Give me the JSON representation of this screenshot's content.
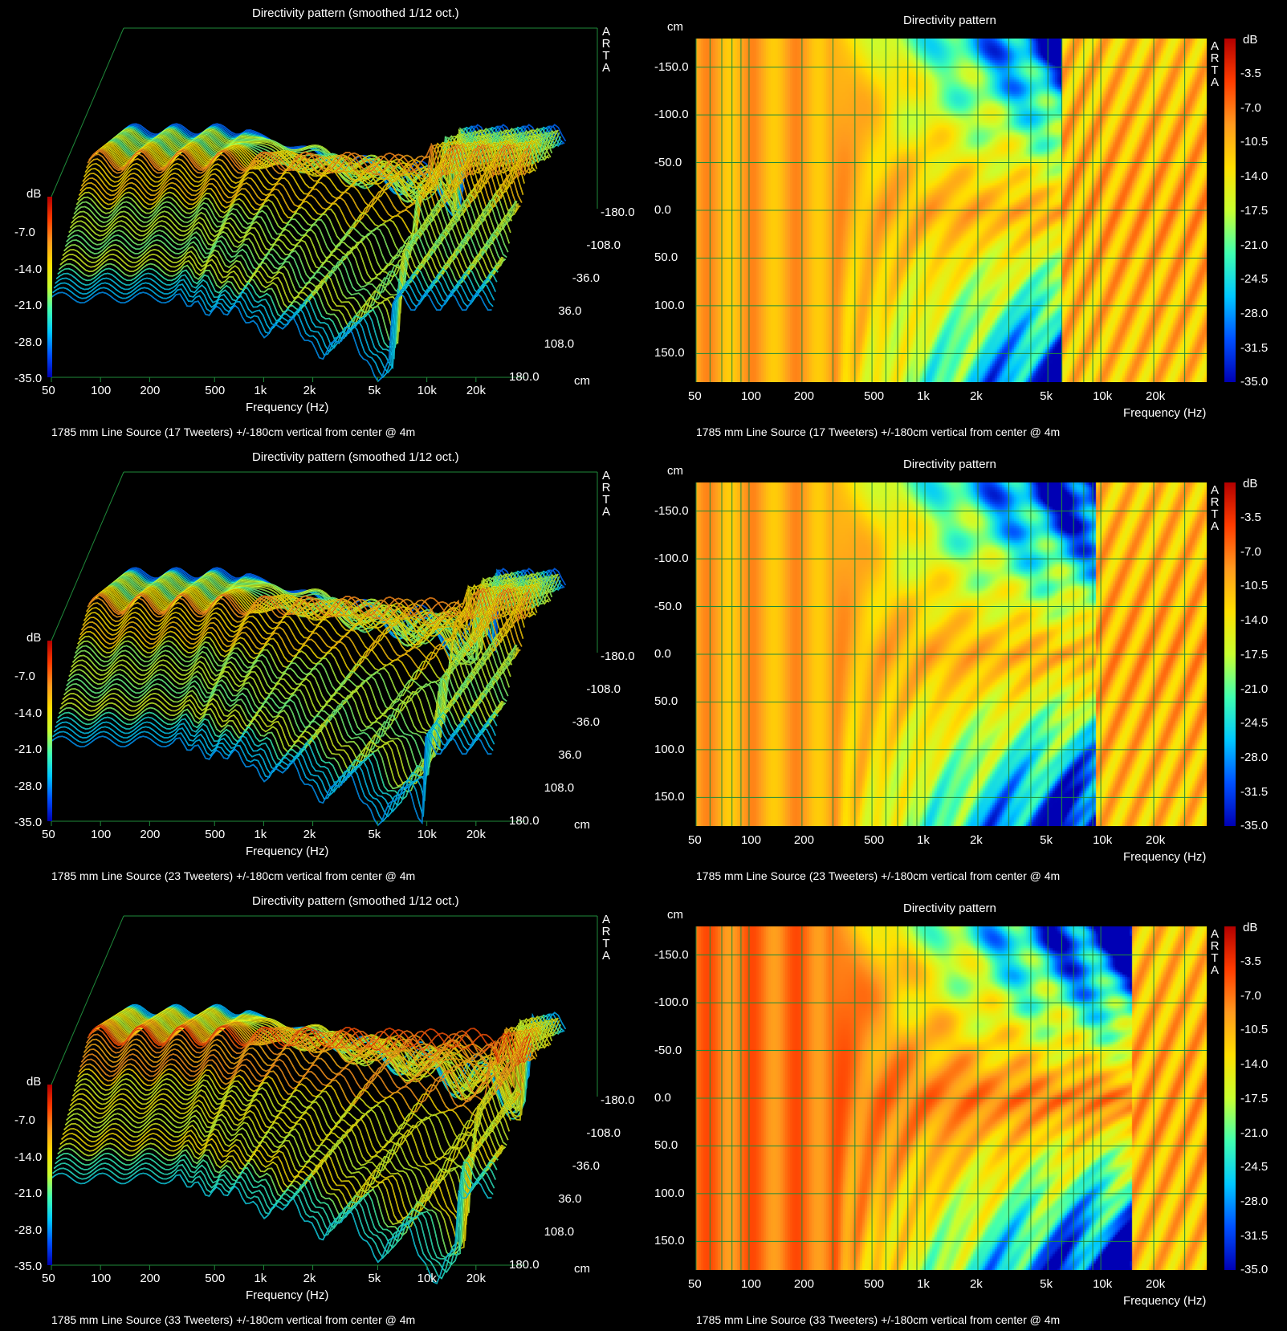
{
  "panels_meta": {
    "left_title": "Directivity pattern (smoothed 1/12 oct.)",
    "right_title": "Directivity pattern",
    "x_label": "Frequency (Hz)",
    "db_label": "dB",
    "cm_label": "cm",
    "watermark": [
      "A",
      "R",
      "T",
      "A"
    ]
  },
  "colors": {
    "grid": "#1f8a3a",
    "surface_stroke": "#000000",
    "colormap": [
      "#0000b4",
      "#0050ff",
      "#00c8ff",
      "#40ffb0",
      "#c8ff30",
      "#ffe000",
      "#ff9a1e",
      "#ff3c00",
      "#b40000"
    ]
  },
  "rows": [
    {
      "caption": "1785 mm Line Source (17 Tweeters) +/-180cm vertical from center @ 4m",
      "tweeters": 17
    },
    {
      "caption": "1785 mm Line Source (23 Tweeters) +/-180cm vertical from center @ 4m",
      "tweeters": 23
    },
    {
      "caption": "1785 mm Line Source (33 Tweeters) +/-180cm vertical from center @ 4m",
      "tweeters": 33
    }
  ],
  "chart_data": [
    {
      "type": "area",
      "title": "Directivity pattern (smoothed 1/12 oct.)",
      "subtitle": "1785 mm Line Source (17 Tweeters) +/-180cm vertical from center @ 4m",
      "xlabel": "Frequency (Hz)",
      "ylabel": "dB",
      "zlabel": "cm",
      "x_scale": "log",
      "x_ticks": [
        "50",
        "100",
        "200",
        "500",
        "1k",
        "2k",
        "5k",
        "10k",
        "20k"
      ],
      "y_ticks": [
        "-7.0",
        "-14.0",
        "-21.0",
        "-28.0",
        "-35.0"
      ],
      "z_ticks": [
        "-180.0",
        "-108.0",
        "-36.0",
        "36.0",
        "108.0",
        "180.0"
      ],
      "ylim": [
        -35,
        0
      ],
      "zlim": [
        -180,
        180
      ]
    },
    {
      "type": "heatmap",
      "title": "Directivity pattern",
      "subtitle": "1785 mm Line Source (17 Tweeters) +/-180cm vertical from center @ 4m",
      "xlabel": "Frequency (Hz)",
      "ylabel": "cm",
      "x_scale": "log",
      "x_ticks": [
        "50",
        "100",
        "200",
        "500",
        "1k",
        "2k",
        "5k",
        "10k",
        "20k"
      ],
      "y_ticks": [
        "-150.0",
        "-100.0",
        "-50.0",
        "0.0",
        "50.0",
        "100.0",
        "150.0"
      ],
      "colorbar_label": "dB",
      "colorbar_ticks": [
        "-3.5",
        "-7.0",
        "-10.5",
        "-14.0",
        "-17.5",
        "-21.0",
        "-24.5",
        "-28.0",
        "-31.5",
        "-35.0"
      ],
      "clim": [
        -35,
        0
      ],
      "ylim": [
        -180,
        180
      ]
    },
    {
      "type": "area",
      "title": "Directivity pattern (smoothed 1/12 oct.)",
      "subtitle": "1785 mm Line Source (23 Tweeters) +/-180cm vertical from center @ 4m",
      "xlabel": "Frequency (Hz)",
      "ylabel": "dB",
      "zlabel": "cm",
      "x_scale": "log",
      "x_ticks": [
        "50",
        "100",
        "200",
        "500",
        "1k",
        "2k",
        "5k",
        "10k",
        "20k"
      ],
      "y_ticks": [
        "-7.0",
        "-14.0",
        "-21.0",
        "-28.0",
        "-35.0"
      ],
      "z_ticks": [
        "-180.0",
        "-108.0",
        "-36.0",
        "36.0",
        "108.0",
        "180.0"
      ],
      "ylim": [
        -35,
        0
      ],
      "zlim": [
        -180,
        180
      ]
    },
    {
      "type": "heatmap",
      "title": "Directivity pattern",
      "subtitle": "1785 mm Line Source (23 Tweeters) +/-180cm vertical from center @ 4m",
      "xlabel": "Frequency (Hz)",
      "ylabel": "cm",
      "x_scale": "log",
      "x_ticks": [
        "50",
        "100",
        "200",
        "500",
        "1k",
        "2k",
        "5k",
        "10k",
        "20k"
      ],
      "y_ticks": [
        "-150.0",
        "-100.0",
        "-50.0",
        "0.0",
        "50.0",
        "100.0",
        "150.0"
      ],
      "colorbar_label": "dB",
      "colorbar_ticks": [
        "-3.5",
        "-7.0",
        "-10.5",
        "-14.0",
        "-17.5",
        "-21.0",
        "-24.5",
        "-28.0",
        "-31.5",
        "-35.0"
      ],
      "clim": [
        -35,
        0
      ],
      "ylim": [
        -180,
        180
      ]
    },
    {
      "type": "area",
      "title": "Directivity pattern (smoothed 1/12 oct.)",
      "subtitle": "1785 mm Line Source (33 Tweeters) +/-180cm vertical from center @ 4m",
      "xlabel": "Frequency (Hz)",
      "ylabel": "dB",
      "zlabel": "cm",
      "x_scale": "log",
      "x_ticks": [
        "50",
        "100",
        "200",
        "500",
        "1k",
        "2k",
        "5k",
        "10k",
        "20k"
      ],
      "y_ticks": [
        "-7.0",
        "-14.0",
        "-21.0",
        "-28.0",
        "-35.0"
      ],
      "z_ticks": [
        "-180.0",
        "-108.0",
        "-36.0",
        "36.0",
        "108.0",
        "180.0"
      ],
      "ylim": [
        -35,
        0
      ],
      "zlim": [
        -180,
        180
      ]
    },
    {
      "type": "heatmap",
      "title": "Directivity pattern",
      "subtitle": "1785 mm Line Source (33 Tweeters) +/-180cm vertical from center @ 4m",
      "xlabel": "Frequency (Hz)",
      "ylabel": "cm",
      "x_scale": "log",
      "x_ticks": [
        "50",
        "100",
        "200",
        "500",
        "1k",
        "2k",
        "5k",
        "10k",
        "20k"
      ],
      "y_ticks": [
        "-150.0",
        "-100.0",
        "-50.0",
        "0.0",
        "50.0",
        "100.0",
        "150.0"
      ],
      "colorbar_label": "dB",
      "colorbar_ticks": [
        "-3.5",
        "-7.0",
        "-10.5",
        "-14.0",
        "-17.5",
        "-21.0",
        "-24.5",
        "-28.0",
        "-31.5",
        "-35.0"
      ],
      "clim": [
        -35,
        0
      ],
      "ylim": [
        -180,
        180
      ]
    }
  ]
}
